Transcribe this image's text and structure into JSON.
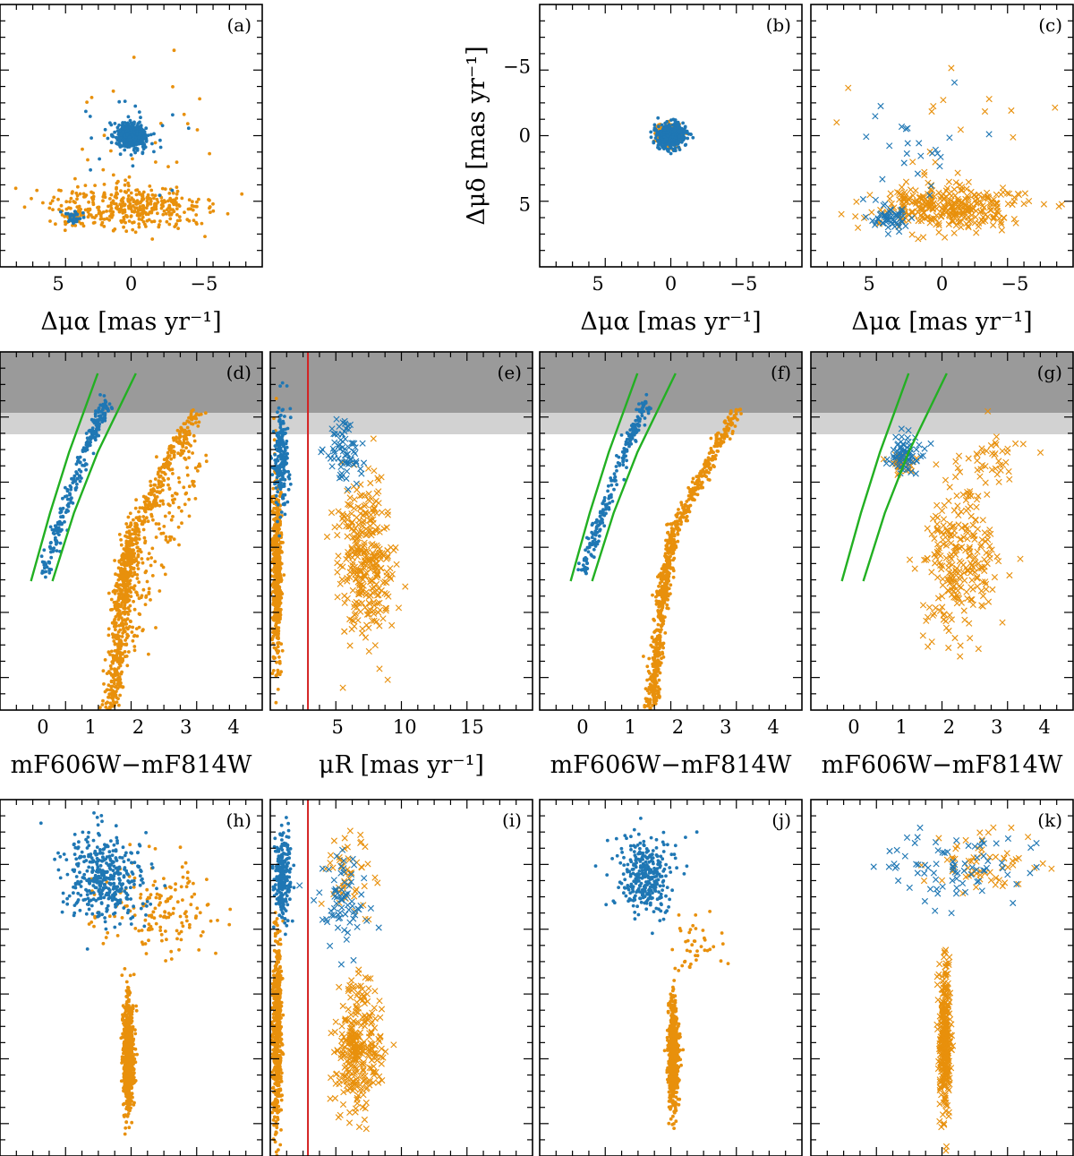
{
  "figure": {
    "colors": {
      "orange": "#E8900C",
      "blue": "#1F77B4",
      "green": "#22B022",
      "red": "#D42020",
      "lightgray": "#D2D2D2",
      "darkgray": "#9A9A9A"
    }
  },
  "chart_data": [
    {
      "id": "a",
      "label": "(a)",
      "type": "scatter",
      "xlabel": "Δμα [mas yr⁻¹]",
      "ylabel": "",
      "xlim": [
        9,
        -9
      ],
      "ylim": [
        -9.5,
        9.5
      ],
      "xticks": [
        "5",
        "0",
        "−5"
      ],
      "yticks": [],
      "series": [
        {
          "name": "",
          "color": "orange",
          "marker": "dot",
          "clouds": [
            {
              "cx": 0,
              "cy": 5.2,
              "sx": 4.8,
              "sy": 1.4,
              "n": 380
            },
            {
              "cx": 3.9,
              "cy": 5.8,
              "sx": 0.7,
              "sy": 0.5,
              "n": 40
            },
            {
              "cx": 0,
              "cy": 0,
              "sx": 5,
              "sy": 5,
              "n": 25
            }
          ]
        },
        {
          "name": "",
          "color": "blue",
          "marker": "dot",
          "clouds": [
            {
              "cx": 0,
              "cy": 0,
              "sx": 0.9,
              "sy": 0.8,
              "n": 520
            },
            {
              "cx": 3.9,
              "cy": 5.9,
              "sx": 0.5,
              "sy": 0.4,
              "n": 30
            },
            {
              "cx": 0,
              "cy": 0,
              "sx": 3,
              "sy": 3,
              "n": 30
            }
          ]
        }
      ]
    },
    {
      "id": "b",
      "label": "(b)",
      "type": "scatter",
      "xlabel": "Δμα [mas yr⁻¹]",
      "ylabel": "Δμδ [mas yr⁻¹]",
      "xlim": [
        9,
        -9
      ],
      "ylim": [
        -9.5,
        9.5
      ],
      "xticks": [
        "5",
        "0",
        "−5"
      ],
      "yticks": [
        "5",
        "0",
        "−5"
      ],
      "series": [
        {
          "name": "",
          "color": "orange",
          "marker": "dot",
          "clouds": [
            {
              "cx": 0,
              "cy": 0,
              "sx": 0.8,
              "sy": 0.7,
              "n": 160
            }
          ]
        },
        {
          "name": "",
          "color": "blue",
          "marker": "dot",
          "clouds": [
            {
              "cx": 0,
              "cy": 0,
              "sx": 0.9,
              "sy": 0.8,
              "n": 420
            }
          ]
        }
      ]
    },
    {
      "id": "c",
      "label": "(c)",
      "type": "scatter",
      "xlabel": "Δμα [mas yr⁻¹]",
      "ylabel": "",
      "xlim": [
        9,
        -9
      ],
      "ylim": [
        -9.5,
        9.5
      ],
      "xticks": [
        "5",
        "0",
        "−5"
      ],
      "yticks": [],
      "series": [
        {
          "name": "",
          "color": "orange",
          "marker": "cross",
          "clouds": [
            {
              "cx": -0.5,
              "cy": 5.2,
              "sx": 4.5,
              "sy": 1.5,
              "n": 330
            },
            {
              "cx": 0,
              "cy": 0,
              "sx": 5,
              "sy": 5,
              "n": 15
            }
          ]
        },
        {
          "name": "",
          "color": "blue",
          "marker": "cross",
          "clouds": [
            {
              "cx": 3.5,
              "cy": 6.0,
              "sx": 1.1,
              "sy": 0.7,
              "n": 55
            },
            {
              "cx": 1.5,
              "cy": 1.0,
              "sx": 3,
              "sy": 4,
              "n": 25
            }
          ]
        }
      ]
    },
    {
      "id": "d",
      "label": "(d)",
      "type": "scatter",
      "xlabel": "mF606W−mF814W",
      "ylabel": "",
      "xlim": [
        -0.9,
        4.6
      ],
      "ylim": [
        1,
        0
      ],
      "xticks": [
        "0",
        "1",
        "2",
        "3",
        "4"
      ],
      "yticks": [],
      "bands": [
        {
          "y0": 0.77,
          "y1": 0.83,
          "color": "lightgray"
        },
        {
          "y0": 0.83,
          "y1": 1.0,
          "color": "darkgray"
        }
      ],
      "lines": [
        {
          "color": "green",
          "points": [
            [
              -0.25,
              0.36
            ],
            [
              0.15,
              0.55
            ],
            [
              0.55,
              0.72
            ],
            [
              1.15,
              0.94
            ]
          ]
        },
        {
          "color": "green",
          "points": [
            [
              0.2,
              0.36
            ],
            [
              0.65,
              0.55
            ],
            [
              1.15,
              0.72
            ],
            [
              1.95,
              0.94
            ]
          ]
        }
      ],
      "series": [
        {
          "name": "",
          "color": "orange",
          "marker": "dot",
          "tracks": [
            {
              "pts": [
                [
                  1.45,
                  0.0
                ],
                [
                  1.65,
                  0.3
                ],
                [
                  1.9,
                  0.5
                ],
                [
                  3.2,
                  0.83
                ]
              ],
              "n": 750,
              "wx": 0.2,
              "wy": 0.01
            },
            {
              "pts": [
                [
                  1.7,
                  0.15
                ],
                [
                  2.3,
                  0.45
                ],
                [
                  3.2,
                  0.7
                ]
              ],
              "n": 160,
              "wx": 0.45,
              "wy": 0.03
            }
          ]
        },
        {
          "name": "",
          "color": "blue",
          "marker": "dot",
          "tracks": [
            {
              "pts": [
                [
                  0.0,
                  0.38
                ],
                [
                  0.45,
                  0.56
                ],
                [
                  1.0,
                  0.76
                ],
                [
                  1.35,
                  0.86
                ]
              ],
              "n": 260,
              "wx": 0.12,
              "wy": 0.01
            }
          ]
        }
      ]
    },
    {
      "id": "e",
      "label": "(e)",
      "type": "scatter",
      "xlabel": "μR [mas yr⁻¹]",
      "ylabel": "",
      "xlim": [
        0,
        19.5
      ],
      "ylim": [
        1,
        0
      ],
      "xticks": [
        "5",
        "10",
        "15"
      ],
      "yticks": [],
      "bands": [
        {
          "y0": 0.77,
          "y1": 0.83,
          "color": "lightgray"
        },
        {
          "y0": 0.83,
          "y1": 1.0,
          "color": "darkgray"
        }
      ],
      "vlines": [
        {
          "x": 2.8,
          "color": "red"
        }
      ],
      "series": [
        {
          "name": "",
          "color": "orange",
          "marker": "dot",
          "clouds": [
            {
              "cx": 0.5,
              "cy": 0.4,
              "sx": 0.3,
              "sy": 0.25,
              "n": 550
            }
          ]
        },
        {
          "name": "",
          "color": "blue",
          "marker": "dot",
          "clouds": [
            {
              "cx": 0.8,
              "cy": 0.7,
              "sx": 0.5,
              "sy": 0.12,
              "n": 200
            }
          ]
        },
        {
          "name": "",
          "color": "orange",
          "marker": "cross",
          "clouds": [
            {
              "cx": 7.0,
              "cy": 0.42,
              "sx": 1.8,
              "sy": 0.22,
              "n": 330
            }
          ]
        },
        {
          "name": "",
          "color": "blue",
          "marker": "cross",
          "clouds": [
            {
              "cx": 5.5,
              "cy": 0.72,
              "sx": 1.3,
              "sy": 0.08,
              "n": 70
            }
          ]
        }
      ]
    },
    {
      "id": "f",
      "label": "(f)",
      "type": "scatter",
      "xlabel": "mF606W−mF814W",
      "ylabel": "",
      "xlim": [
        -0.9,
        4.6
      ],
      "ylim": [
        1,
        0
      ],
      "xticks": [
        "0",
        "1",
        "2",
        "3",
        "4"
      ],
      "yticks": [],
      "bands": [
        {
          "y0": 0.77,
          "y1": 0.83,
          "color": "lightgray"
        },
        {
          "y0": 0.83,
          "y1": 1.0,
          "color": "darkgray"
        }
      ],
      "lines": [
        {
          "color": "green",
          "points": [
            [
              -0.25,
              0.36
            ],
            [
              0.15,
              0.55
            ],
            [
              0.55,
              0.72
            ],
            [
              1.15,
              0.94
            ]
          ]
        },
        {
          "color": "green",
          "points": [
            [
              0.2,
              0.36
            ],
            [
              0.65,
              0.55
            ],
            [
              1.15,
              0.72
            ],
            [
              1.95,
              0.94
            ]
          ]
        }
      ],
      "series": [
        {
          "name": "",
          "color": "orange",
          "marker": "dot",
          "tracks": [
            {
              "pts": [
                [
                  1.45,
                  0.0
                ],
                [
                  1.65,
                  0.3
                ],
                [
                  1.9,
                  0.5
                ],
                [
                  3.2,
                  0.83
                ]
              ],
              "n": 720,
              "wx": 0.14,
              "wy": 0.01
            }
          ]
        },
        {
          "name": "",
          "color": "blue",
          "marker": "dot",
          "tracks": [
            {
              "pts": [
                [
                  0.0,
                  0.38
                ],
                [
                  0.45,
                  0.56
                ],
                [
                  1.0,
                  0.76
                ],
                [
                  1.35,
                  0.86
                ]
              ],
              "n": 240,
              "wx": 0.12,
              "wy": 0.01
            }
          ]
        }
      ]
    },
    {
      "id": "g",
      "label": "(g)",
      "type": "scatter",
      "xlabel": "mF606W−mF814W",
      "ylabel": "",
      "xlim": [
        -0.9,
        4.6
      ],
      "ylim": [
        1,
        0
      ],
      "xticks": [
        "0",
        "1",
        "2",
        "3",
        "4"
      ],
      "yticks": [],
      "bands": [
        {
          "y0": 0.77,
          "y1": 0.83,
          "color": "lightgray"
        },
        {
          "y0": 0.83,
          "y1": 1.0,
          "color": "darkgray"
        }
      ],
      "lines": [
        {
          "color": "green",
          "points": [
            [
              -0.25,
              0.36
            ],
            [
              0.15,
              0.55
            ],
            [
              0.55,
              0.72
            ],
            [
              1.15,
              0.94
            ]
          ]
        },
        {
          "color": "green",
          "points": [
            [
              0.2,
              0.36
            ],
            [
              0.65,
              0.55
            ],
            [
              1.15,
              0.72
            ],
            [
              1.95,
              0.94
            ]
          ]
        }
      ],
      "series": [
        {
          "name": "",
          "color": "orange",
          "marker": "cross",
          "clouds": [
            {
              "cx": 2.2,
              "cy": 0.42,
              "sx": 0.7,
              "sy": 0.2,
              "n": 260
            },
            {
              "cx": 1.0,
              "cy": 0.69,
              "sx": 0.3,
              "sy": 0.03,
              "n": 40
            },
            {
              "cx": 3.0,
              "cy": 0.7,
              "sx": 0.7,
              "sy": 0.06,
              "n": 40
            }
          ]
        },
        {
          "name": "",
          "color": "blue",
          "marker": "cross",
          "clouds": [
            {
              "cx": 1.1,
              "cy": 0.72,
              "sx": 0.3,
              "sy": 0.06,
              "n": 70
            }
          ]
        }
      ]
    },
    {
      "id": "h",
      "label": "(h)",
      "type": "scatter",
      "xlabel": "",
      "ylabel": "",
      "xlim": [
        -0.5,
        4.5
      ],
      "ylim": [
        1,
        0
      ],
      "xticks": [],
      "yticks": [],
      "series": [
        {
          "name": "",
          "color": "orange",
          "marker": "dot",
          "clouds": [
            {
              "cx": 1.95,
              "cy": 0.28,
              "sx": 0.1,
              "sy": 0.14,
              "n": 650
            },
            {
              "cx": 2.5,
              "cy": 0.7,
              "sx": 1.1,
              "sy": 0.12,
              "n": 160
            }
          ]
        },
        {
          "name": "",
          "color": "blue",
          "marker": "dot",
          "clouds": [
            {
              "cx": 1.5,
              "cy": 0.78,
              "sx": 0.7,
              "sy": 0.12,
              "n": 400
            }
          ]
        }
      ]
    },
    {
      "id": "i",
      "label": "(i)",
      "type": "scatter",
      "xlabel": "",
      "ylabel": "",
      "xlim": [
        0,
        19.5
      ],
      "ylim": [
        1,
        0
      ],
      "xticks": [],
      "yticks": [],
      "vlines": [
        {
          "x": 2.8,
          "color": "red"
        }
      ],
      "series": [
        {
          "name": "",
          "color": "orange",
          "marker": "dot",
          "clouds": [
            {
              "cx": 0.5,
              "cy": 0.35,
              "sx": 0.3,
              "sy": 0.25,
              "n": 550
            }
          ]
        },
        {
          "name": "",
          "color": "blue",
          "marker": "dot",
          "clouds": [
            {
              "cx": 0.9,
              "cy": 0.78,
              "sx": 0.6,
              "sy": 0.12,
              "n": 250
            }
          ]
        },
        {
          "name": "",
          "color": "orange",
          "marker": "cross",
          "clouds": [
            {
              "cx": 6.5,
              "cy": 0.3,
              "sx": 1.7,
              "sy": 0.15,
              "n": 300
            },
            {
              "cx": 6.0,
              "cy": 0.8,
              "sx": 1.5,
              "sy": 0.1,
              "n": 50
            }
          ]
        },
        {
          "name": "",
          "color": "blue",
          "marker": "cross",
          "clouds": [
            {
              "cx": 5.5,
              "cy": 0.72,
              "sx": 1.6,
              "sy": 0.11,
              "n": 70
            }
          ]
        }
      ]
    },
    {
      "id": "j",
      "label": "(j)",
      "type": "scatter",
      "xlabel": "",
      "ylabel": "",
      "xlim": [
        -0.5,
        4.5
      ],
      "ylim": [
        1,
        0
      ],
      "xticks": [],
      "yticks": [],
      "series": [
        {
          "name": "",
          "color": "orange",
          "marker": "dot",
          "clouds": [
            {
              "cx": 2.05,
              "cy": 0.28,
              "sx": 0.09,
              "sy": 0.14,
              "n": 620
            },
            {
              "cx": 2.5,
              "cy": 0.6,
              "sx": 0.5,
              "sy": 0.06,
              "n": 40
            }
          ]
        },
        {
          "name": "",
          "color": "blue",
          "marker": "dot",
          "clouds": [
            {
              "cx": 1.5,
              "cy": 0.78,
              "sx": 0.5,
              "sy": 0.1,
              "n": 300
            }
          ]
        }
      ]
    },
    {
      "id": "k",
      "label": "(k)",
      "type": "scatter",
      "xlabel": "",
      "ylabel": "",
      "xlim": [
        -0.5,
        4.5
      ],
      "ylim": [
        1,
        0
      ],
      "xticks": [],
      "yticks": [],
      "series": [
        {
          "name": "",
          "color": "orange",
          "marker": "cross",
          "clouds": [
            {
              "cx": 2.05,
              "cy": 0.32,
              "sx": 0.1,
              "sy": 0.18,
              "n": 330
            },
            {
              "cx": 2.6,
              "cy": 0.83,
              "sx": 1.0,
              "sy": 0.07,
              "n": 60
            }
          ]
        },
        {
          "name": "",
          "color": "blue",
          "marker": "cross",
          "clouds": [
            {
              "cx": 2.2,
              "cy": 0.82,
              "sx": 1.3,
              "sy": 0.09,
              "n": 80
            }
          ]
        }
      ]
    }
  ]
}
